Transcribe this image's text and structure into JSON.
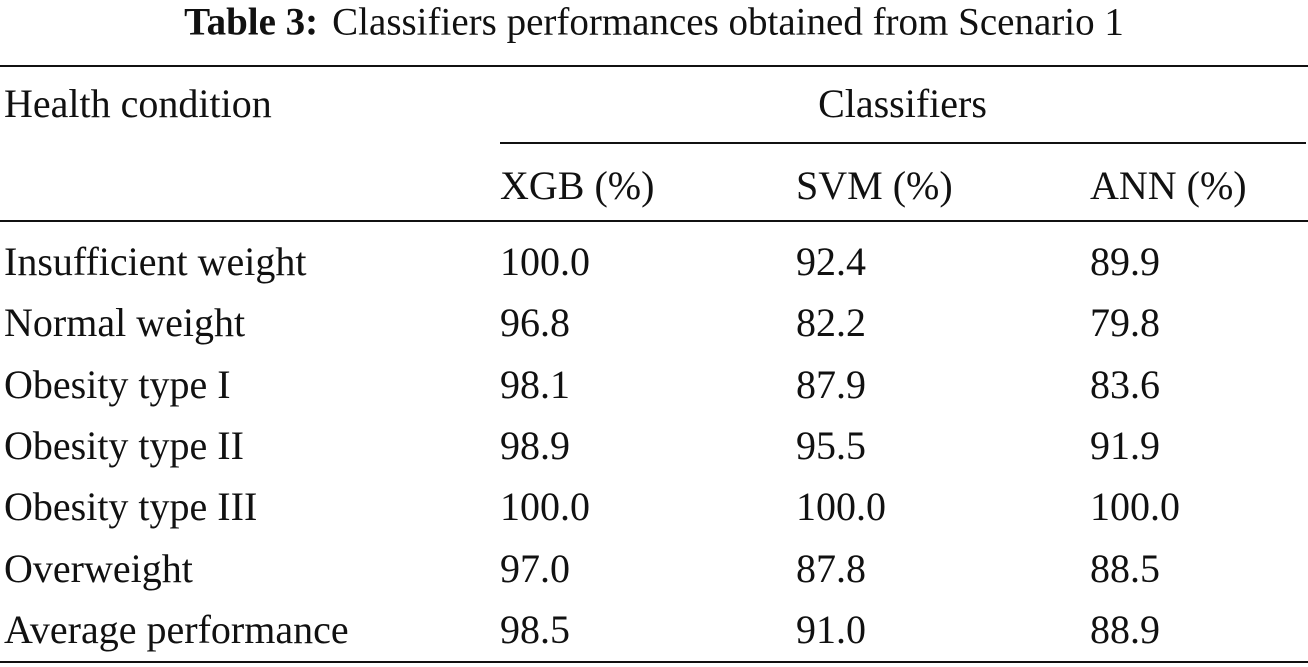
{
  "caption": {
    "label": "Table 3:",
    "text": "Classifiers performances obtained from Scenario 1"
  },
  "table": {
    "row_header": "Health condition",
    "group_header": "Classifiers",
    "columns": [
      "XGB (%)",
      "SVM (%)",
      "ANN (%)"
    ],
    "rows": [
      [
        "Insufficient weight",
        "100.0",
        "92.4",
        "89.9"
      ],
      [
        "Normal weight",
        "96.8",
        "82.2",
        "79.8"
      ],
      [
        "Obesity type I",
        "98.1",
        "87.9",
        "83.6"
      ],
      [
        "Obesity type II",
        "98.9",
        "95.5",
        "91.9"
      ],
      [
        "Obesity type III",
        "100.0",
        "100.0",
        "100.0"
      ],
      [
        "Overweight",
        "97.0",
        "87.8",
        "88.5"
      ],
      [
        "Average performance",
        "98.5",
        "91.0",
        "88.9"
      ]
    ]
  }
}
